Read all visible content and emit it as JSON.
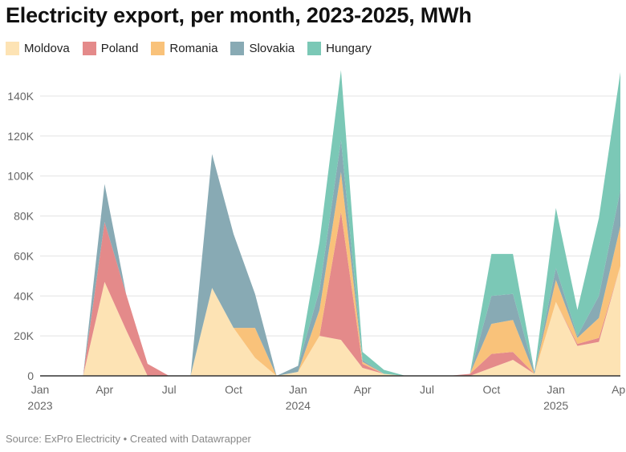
{
  "title": "Electricity export, per month, 2023-2025, MWh",
  "footer": {
    "source": "Source: ExPro Electricity",
    "separator": "•",
    "credit": "Created with Datawrapper"
  },
  "chart_data": {
    "type": "area",
    "stacked": true,
    "title": "Electricity export, per month, 2023-2025, MWh",
    "xlabel": "",
    "ylabel": "",
    "ylim": [
      0,
      150000
    ],
    "yticks": [
      0,
      20000,
      40000,
      60000,
      80000,
      100000,
      120000,
      140000
    ],
    "ytick_labels": [
      "0",
      "20K",
      "40K",
      "60K",
      "80K",
      "100K",
      "120K",
      "140K"
    ],
    "x": [
      "2023-01",
      "2023-02",
      "2023-03",
      "2023-04",
      "2023-05",
      "2023-06",
      "2023-07",
      "2023-08",
      "2023-09",
      "2023-10",
      "2023-11",
      "2023-12",
      "2024-01",
      "2024-02",
      "2024-03",
      "2024-04",
      "2024-05",
      "2024-06",
      "2024-07",
      "2024-08",
      "2024-09",
      "2024-10",
      "2024-11",
      "2024-12",
      "2025-01",
      "2025-02",
      "2025-03",
      "2025-04"
    ],
    "xticks": [
      {
        "index": 0,
        "label": "Jan",
        "sublabel": "2023"
      },
      {
        "index": 3,
        "label": "Apr",
        "sublabel": ""
      },
      {
        "index": 6,
        "label": "Jul",
        "sublabel": ""
      },
      {
        "index": 9,
        "label": "Oct",
        "sublabel": ""
      },
      {
        "index": 12,
        "label": "Jan",
        "sublabel": "2024"
      },
      {
        "index": 15,
        "label": "Apr",
        "sublabel": ""
      },
      {
        "index": 18,
        "label": "Jul",
        "sublabel": ""
      },
      {
        "index": 21,
        "label": "Oct",
        "sublabel": ""
      },
      {
        "index": 24,
        "label": "Jan",
        "sublabel": "2025"
      },
      {
        "index": 27,
        "label": "Apr",
        "sublabel": ""
      }
    ],
    "series": [
      {
        "name": "Moldova",
        "color": "#fde3b4",
        "values": [
          0,
          0,
          0,
          47000,
          23000,
          0,
          0,
          0,
          44000,
          24000,
          9000,
          0,
          2000,
          20000,
          18000,
          4000,
          1000,
          0,
          0,
          0,
          0,
          4000,
          8000,
          1000,
          37000,
          15000,
          17000,
          55000
        ]
      },
      {
        "name": "Poland",
        "color": "#e48a8a",
        "values": [
          0,
          0,
          0,
          30000,
          18000,
          6000,
          0,
          0,
          0,
          0,
          0,
          0,
          0,
          0,
          64000,
          2000,
          0,
          0,
          0,
          0,
          1000,
          7000,
          4000,
          0,
          0,
          1000,
          2000,
          0
        ]
      },
      {
        "name": "Romania",
        "color": "#f9c27a",
        "values": [
          0,
          0,
          0,
          0,
          0,
          0,
          0,
          0,
          0,
          0,
          15000,
          0,
          0,
          13000,
          20000,
          1000,
          0,
          0,
          0,
          0,
          0,
          15000,
          16000,
          0,
          11000,
          3000,
          10000,
          20000
        ]
      },
      {
        "name": "Slovakia",
        "color": "#88aab4",
        "values": [
          0,
          0,
          0,
          19000,
          0,
          0,
          0,
          0,
          67000,
          47000,
          17000,
          0,
          3000,
          10000,
          16000,
          1000,
          0,
          0,
          0,
          0,
          0,
          14000,
          13000,
          1000,
          6000,
          1000,
          11000,
          18000
        ]
      },
      {
        "name": "Hungary",
        "color": "#7bc8b6",
        "values": [
          0,
          0,
          0,
          0,
          0,
          0,
          0,
          0,
          0,
          0,
          0,
          0,
          0,
          24000,
          35000,
          4000,
          2000,
          0,
          0,
          0,
          0,
          21000,
          20000,
          0,
          30000,
          13000,
          39000,
          59000
        ]
      }
    ]
  }
}
